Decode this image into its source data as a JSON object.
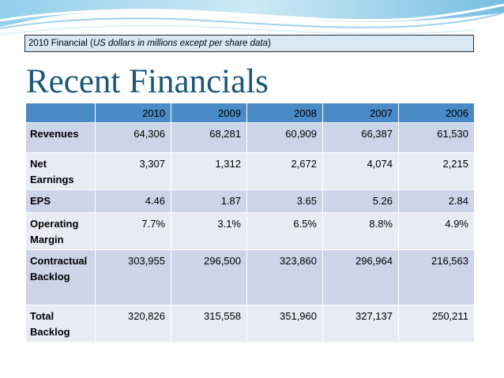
{
  "caption": {
    "prefix": "2010 Financial (",
    "italic": "US dollars in millions except per share data",
    "suffix": ")"
  },
  "title": "Recent Financials",
  "table": {
    "columns": [
      "",
      "2010",
      "2009",
      "2008",
      "2007",
      "2006"
    ],
    "rows": [
      {
        "label": "Revenues",
        "values": [
          "64,306",
          "68,281",
          "60,909",
          "66,387",
          "61,530"
        ]
      },
      {
        "label": "Net Earnings",
        "values": [
          "3,307",
          "1,312",
          "2,672",
          "4,074",
          "2,215"
        ]
      },
      {
        "label": "EPS",
        "values": [
          "4.46",
          "1.87",
          "3.65",
          "5.26",
          "2.84"
        ]
      },
      {
        "label": "Operating Margin",
        "values": [
          "7.7%",
          "3.1%",
          "6.5%",
          "8.8%",
          "4.9%"
        ]
      },
      {
        "label": "Contractual Backlog",
        "values": [
          "303,955",
          "296,500",
          "323,860",
          "296,964",
          "216,563"
        ]
      },
      {
        "label": "Total Backlog",
        "values": [
          "320,826",
          "315,558",
          "351,960",
          "327,137",
          "250,211"
        ]
      }
    ]
  },
  "colors": {
    "header_fill": "#4a8ac7",
    "row_dark": "#ccd4e9",
    "row_light": "#e8ebf4",
    "title": "#1a5779",
    "caption_fill": "#d9e8f6"
  }
}
